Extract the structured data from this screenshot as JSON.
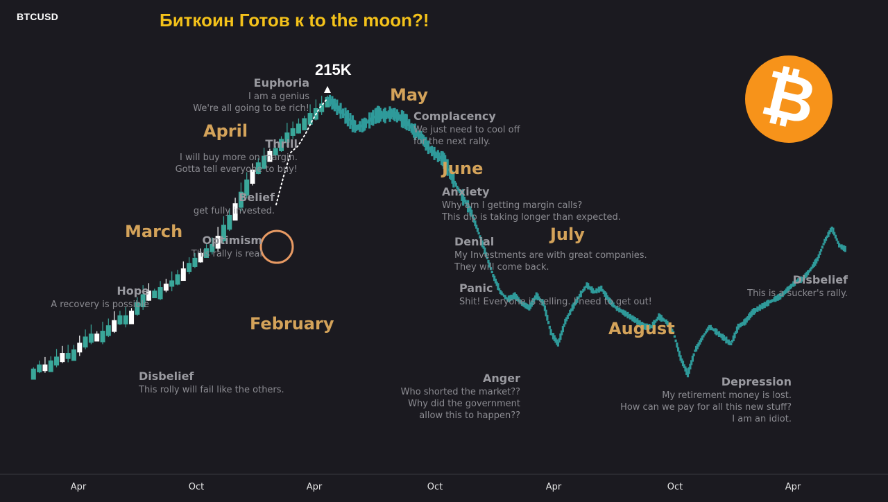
{
  "header": {
    "ticker": "BTCUSD",
    "headline": "Биткоин Готов к to the moon?!"
  },
  "colors": {
    "background": "#1b1a20",
    "headline": "#f4c21a",
    "month_label": "#d4a35a",
    "stage_title": "#9a9aa0",
    "stage_text": "#8c8c92",
    "candle_green": "#3aa79a",
    "candle_white": "#ffffff",
    "decline": "#2f9a9a",
    "highlight_circle": "#e89a63",
    "axis_text": "#e6e6e6",
    "btc_orange": "#f7931a"
  },
  "icons": {
    "logo": "bitcoin-icon",
    "arrow": "arrow-up-icon"
  },
  "peak_label": "215K",
  "chart_data": {
    "type": "line",
    "title": "",
    "x_ticks": [
      "Apr",
      "Oct",
      "Apr",
      "Oct",
      "Apr",
      "Oct",
      "Apr"
    ],
    "series": [
      {
        "values": [
          10,
          10.5,
          11,
          10.8,
          11.5,
          12,
          12.5,
          12.2,
          13,
          14,
          15,
          15.5,
          15,
          16,
          17,
          18,
          19,
          18,
          20,
          22,
          24,
          25,
          24,
          26,
          27,
          28,
          30,
          32,
          34,
          36,
          38,
          40,
          42,
          46,
          52,
          58,
          66,
          75,
          86,
          96,
          104,
          112,
          118,
          122,
          135,
          145,
          152,
          160,
          170,
          180,
          190,
          200,
          215
        ]
      },
      {
        "values": [
          215,
          200,
          185,
          170,
          155,
          160,
          170,
          180,
          178,
          182,
          175,
          165,
          150,
          140,
          125,
          115,
          110,
          95,
          80,
          70,
          60,
          48,
          38,
          30,
          25,
          23,
          24,
          22,
          21,
          24,
          22,
          16,
          14,
          18,
          21,
          24,
          27,
          25,
          26,
          23,
          21,
          20,
          19,
          18,
          17,
          17,
          19,
          18,
          16,
          12,
          10,
          13,
          15,
          17,
          16,
          15,
          14,
          17,
          18,
          20,
          21,
          22,
          23,
          24,
          26,
          28,
          29,
          32,
          36,
          44,
          51,
          42,
          40
        ]
      },
      {
        "values": [
          66,
          90,
          118,
          127,
          145,
          170,
          195,
          215
        ]
      }
    ]
  },
  "annotations": {
    "months": {
      "february": "February",
      "march": "March",
      "april": "April",
      "may": "May",
      "june": "June",
      "july": "July",
      "august": "August"
    },
    "stages": [
      {
        "title": "Disbelief",
        "lines": [
          "This rolly will fail like the others."
        ]
      },
      {
        "title": "Hope",
        "lines": [
          "A recovery is possible"
        ]
      },
      {
        "title": "Optimism",
        "lines": [
          "This rally is real"
        ]
      },
      {
        "title": "Belief",
        "lines": [
          "get fully invested."
        ]
      },
      {
        "title": "Thrill",
        "lines": [
          "I will buy more on margin.",
          "Gotta tell everyone to buy!"
        ]
      },
      {
        "title": "Euphoria",
        "lines": [
          "I am a genius",
          "We're all going to be rich!"
        ]
      },
      {
        "title": "Complacency",
        "lines": [
          "We just need to cool off",
          "for the next rally."
        ]
      },
      {
        "title": "Anxiety",
        "lines": [
          "Why am I getting margin calls?",
          "This dip is taking longer than expected."
        ]
      },
      {
        "title": "Denial",
        "lines": [
          "My Investments are with great companies.",
          "They will come back."
        ]
      },
      {
        "title": "Panic",
        "lines": [
          "Shit! Everyone is selling. I'need to get out!"
        ]
      },
      {
        "title": "Anger",
        "lines": [
          "Who shorted the market??",
          "Why did the government",
          "allow this to happen??"
        ]
      },
      {
        "title": "Depression",
        "lines": [
          "My retirement money is lost.",
          "How can we pay for all this new stuff?",
          "I am an idiot."
        ]
      },
      {
        "title": "Disbelief",
        "lines": [
          "This is a sucker's rally."
        ]
      }
    ]
  }
}
